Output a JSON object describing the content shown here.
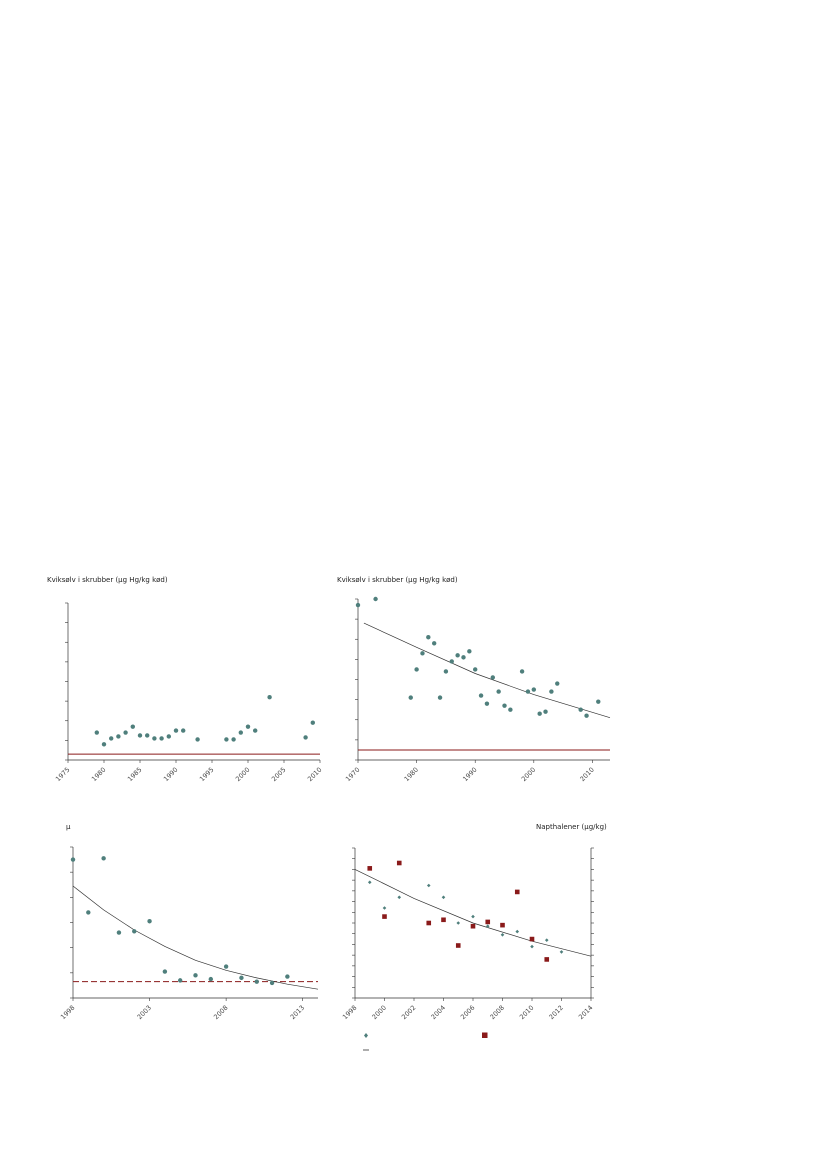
{
  "colors": {
    "point": "#4f7f7c",
    "square": "#8a1a1a",
    "ref": "#8a1a1a",
    "fit": "#333333",
    "axis": "#333333"
  },
  "panels": [
    {
      "title": "Kviksølv i skrubber (µg Hg/kg kød)"
    },
    {
      "title": "Kviksølv i skrubber (µg Hg/kg kød)"
    },
    {
      "title": "µ"
    },
    {
      "title": "Napthalener (µg/kg)"
    }
  ],
  "chart_data": [
    {
      "type": "scatter",
      "xlim": [
        1975,
        2010
      ],
      "ylim": [
        0,
        8
      ],
      "xticks": [
        "1975",
        "1980",
        "1985",
        "1990",
        "1995",
        "2000",
        "2005",
        "2010"
      ],
      "yticks": 8,
      "reference_line": 0.3,
      "points": [
        [
          1979,
          1.4
        ],
        [
          1980,
          0.8
        ],
        [
          1981,
          1.1
        ],
        [
          1982,
          1.2
        ],
        [
          1983,
          1.4
        ],
        [
          1984,
          1.7
        ],
        [
          1985,
          1.25
        ],
        [
          1986,
          1.25
        ],
        [
          1987,
          1.1
        ],
        [
          1988,
          1.1
        ],
        [
          1989,
          1.2
        ],
        [
          1990,
          1.5
        ],
        [
          1991,
          1.5
        ],
        [
          1993,
          1.05
        ],
        [
          1997,
          1.05
        ],
        [
          1998,
          1.05
        ],
        [
          1999,
          1.4
        ],
        [
          2000,
          1.7
        ],
        [
          2001,
          1.5
        ],
        [
          2003,
          3.2
        ],
        [
          2008,
          1.15
        ],
        [
          2009,
          1.9
        ]
      ]
    },
    {
      "type": "scatter",
      "xlim": [
        1970,
        2013
      ],
      "ylim": [
        0,
        8
      ],
      "xticks": [
        "1970",
        "1980",
        "1990",
        "2000",
        "2010"
      ],
      "yticks": 8,
      "reference_line": 0.5,
      "fit": [
        [
          1971,
          6.8
        ],
        [
          1980,
          5.6
        ],
        [
          1990,
          4.3
        ],
        [
          2000,
          3.25
        ],
        [
          2013,
          2.1
        ]
      ],
      "points": [
        [
          1970,
          7.7
        ],
        [
          1973,
          8
        ],
        [
          1979,
          3.1
        ],
        [
          1980,
          4.5
        ],
        [
          1981,
          5.3
        ],
        [
          1982,
          6.1
        ],
        [
          1983,
          5.8
        ],
        [
          1984,
          3.1
        ],
        [
          1985,
          4.4
        ],
        [
          1986,
          4.9
        ],
        [
          1987,
          5.2
        ],
        [
          1988,
          5.1
        ],
        [
          1989,
          5.4
        ],
        [
          1990,
          4.5
        ],
        [
          1991,
          3.2
        ],
        [
          1992,
          2.8
        ],
        [
          1993,
          4.1
        ],
        [
          1994,
          3.4
        ],
        [
          1995,
          2.7
        ],
        [
          1996,
          2.5
        ],
        [
          1998,
          4.4
        ],
        [
          1999,
          3.4
        ],
        [
          2000,
          3.5
        ],
        [
          2001,
          2.3
        ],
        [
          2002,
          2.4
        ],
        [
          2003,
          3.4
        ],
        [
          2004,
          3.8
        ],
        [
          2008,
          2.5
        ],
        [
          2009,
          2.2
        ],
        [
          2011,
          2.9
        ]
      ]
    },
    {
      "type": "scatter",
      "xlim": [
        1998,
        2014
      ],
      "ylim": [
        0,
        6
      ],
      "xticks": [
        "1998",
        "2003",
        "2008",
        "2013"
      ],
      "yticks": 6,
      "reference_line": 0.65,
      "fit": [
        [
          1998,
          4.45
        ],
        [
          2000,
          3.5
        ],
        [
          2002,
          2.7
        ],
        [
          2004,
          2.05
        ],
        [
          2006,
          1.5
        ],
        [
          2008,
          1.1
        ],
        [
          2010,
          0.8
        ],
        [
          2012,
          0.55
        ],
        [
          2014,
          0.35
        ]
      ],
      "points": [
        [
          1998,
          5.5
        ],
        [
          1999,
          3.4
        ],
        [
          2000,
          5.55
        ],
        [
          2001,
          2.6
        ],
        [
          2002,
          2.65
        ],
        [
          2003,
          3.05
        ],
        [
          2004,
          1.05
        ],
        [
          2005,
          0.7
        ],
        [
          2006,
          0.9
        ],
        [
          2007,
          0.75
        ],
        [
          2008,
          1.25
        ],
        [
          2009,
          0.8
        ],
        [
          2010,
          0.65
        ],
        [
          2011,
          0.6
        ],
        [
          2012,
          0.85
        ]
      ]
    },
    {
      "type": "scatter",
      "xlim": [
        1998,
        2014
      ],
      "ylim": [
        0,
        14
      ],
      "xticks": [
        "1998",
        "2000",
        "2002",
        "2004",
        "2006",
        "2008",
        "2010",
        "2012",
        "2014"
      ],
      "yticks": 14,
      "fit": [
        [
          1998,
          12
        ],
        [
          2002,
          9.3
        ],
        [
          2006,
          7
        ],
        [
          2010,
          5.3
        ],
        [
          2014,
          3.9
        ]
      ],
      "series": [
        {
          "marker": "diamond",
          "points": [
            [
              1999,
              10.8
            ],
            [
              2000,
              8.4
            ],
            [
              2001,
              9.4
            ],
            [
              2003,
              10.5
            ],
            [
              2004,
              9.4
            ],
            [
              2005,
              7
            ],
            [
              2006,
              7.6
            ],
            [
              2007,
              6.7
            ],
            [
              2008,
              5.9
            ],
            [
              2009,
              6.2
            ],
            [
              2010,
              4.8
            ],
            [
              2011,
              5.4
            ],
            [
              2012,
              4.3
            ]
          ]
        },
        {
          "marker": "square",
          "points": [
            [
              1999,
              12.1
            ],
            [
              2000,
              7.6
            ],
            [
              2001,
              12.6
            ],
            [
              2003,
              7
            ],
            [
              2004,
              7.3
            ],
            [
              2005,
              4.9
            ],
            [
              2006,
              6.7
            ],
            [
              2007,
              7.1
            ],
            [
              2008,
              6.8
            ],
            [
              2009,
              9.9
            ],
            [
              2010,
              5.5
            ],
            [
              2011,
              3.6
            ]
          ]
        }
      ]
    }
  ]
}
